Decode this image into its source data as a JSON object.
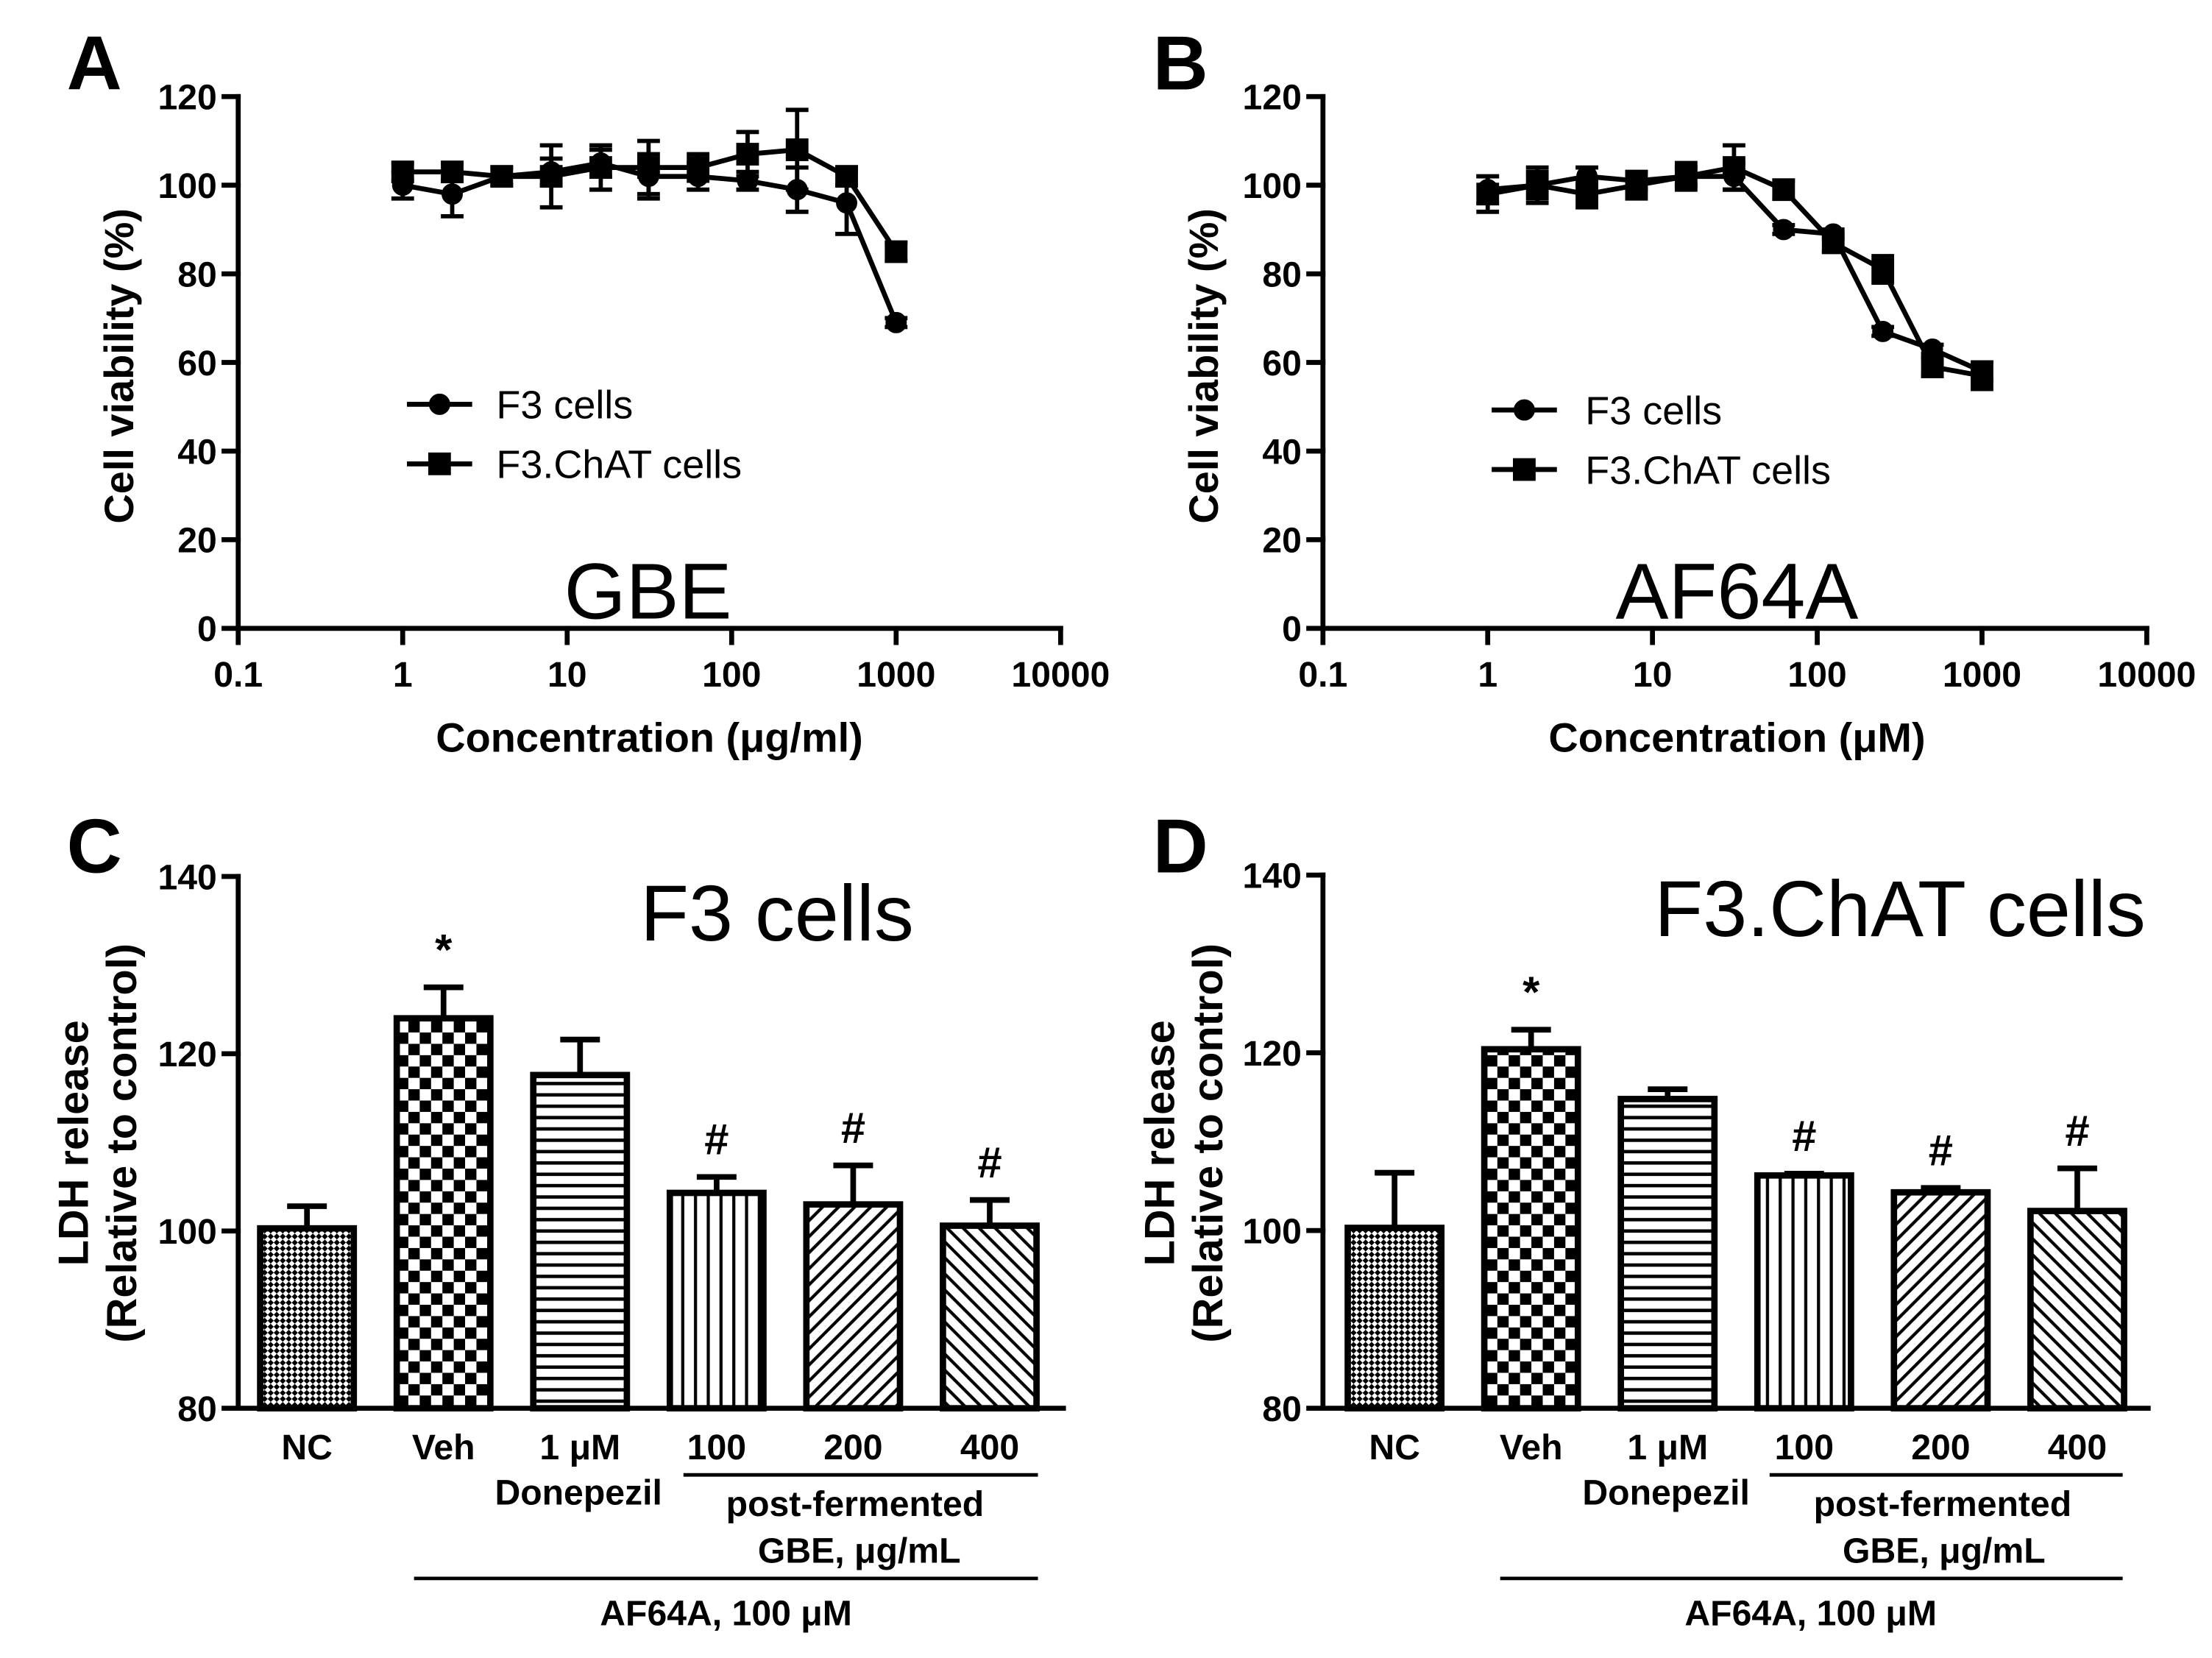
{
  "chart_data": [
    {
      "label": "A",
      "type": "line",
      "title": "GBE",
      "xlabel": "Concentration (μg/ml)",
      "ylabel": "Cell viability (%)",
      "xlog": true,
      "xlim": [
        0.1,
        10000
      ],
      "ylim": [
        0,
        120
      ],
      "xticks": [
        0.1,
        1,
        10,
        100,
        1000,
        10000
      ],
      "yticks": [
        0,
        20,
        40,
        60,
        80,
        100,
        120
      ],
      "grid": false,
      "legend": "center-left",
      "series": [
        {
          "name": "F3 cells",
          "marker": "circle",
          "x": [
            1,
            2,
            4,
            8,
            16,
            31.25,
            62.5,
            125,
            250,
            500,
            1000
          ],
          "y": [
            100,
            98,
            102,
            103,
            105,
            102,
            102,
            101,
            99,
            96,
            69
          ],
          "err": [
            3,
            5,
            2,
            3,
            3,
            5,
            3,
            2,
            5,
            7,
            1
          ]
        },
        {
          "name": "F3.ChAT cells",
          "marker": "square",
          "x": [
            1,
            2,
            4,
            8,
            16,
            31.25,
            62.5,
            125,
            250,
            500,
            1000
          ],
          "y": [
            103,
            103,
            102,
            102,
            104,
            104,
            104,
            107,
            108,
            102,
            85
          ],
          "err": [
            2,
            2,
            2,
            7,
            5,
            6,
            3,
            5,
            9,
            2,
            2
          ]
        }
      ]
    },
    {
      "label": "B",
      "type": "line",
      "title": "AF64A",
      "xlabel": "Concentration (μM)",
      "ylabel": "Cell viability (%)",
      "xlog": true,
      "xlim": [
        0.1,
        10000
      ],
      "ylim": [
        0,
        120
      ],
      "xticks": [
        0.1,
        1,
        10,
        100,
        1000,
        10000
      ],
      "yticks": [
        0,
        20,
        40,
        60,
        80,
        100,
        120
      ],
      "grid": false,
      "legend": "center-left",
      "series": [
        {
          "name": "F3 cells",
          "marker": "circle",
          "x": [
            1,
            2,
            4,
            8,
            16,
            31.25,
            62.5,
            125,
            250,
            500,
            1000
          ],
          "y": [
            99,
            100,
            102,
            101,
            102,
            102,
            90,
            89,
            67,
            63,
            58
          ],
          "err": [
            3,
            3,
            2,
            2,
            2,
            3,
            1,
            1,
            1,
            1,
            2
          ]
        },
        {
          "name": "F3.ChAT cells",
          "marker": "square",
          "x": [
            1,
            2,
            4,
            8,
            16,
            31.25,
            62.5,
            125,
            250,
            500,
            1000
          ],
          "y": [
            98,
            100,
            98,
            100,
            102,
            104,
            99,
            87,
            81,
            59,
            57
          ],
          "err": [
            4,
            4,
            3,
            3,
            3,
            5,
            2,
            2,
            3,
            2,
            3
          ]
        }
      ]
    },
    {
      "label": "C",
      "type": "bar",
      "title": "F3 cells",
      "ylabel": [
        "LDH release",
        "(Relative to control)"
      ],
      "ylim": [
        80,
        140
      ],
      "yticks": [
        80,
        100,
        120,
        140
      ],
      "grid": false,
      "categories": [
        "NC",
        "Veh",
        "1 μM",
        "100",
        "200",
        "400"
      ],
      "values": [
        100.3,
        124.0,
        117.6,
        104.3,
        103.0,
        100.6
      ],
      "errors": [
        2.5,
        3.5,
        4.0,
        1.8,
        4.4,
        2.9
      ],
      "annotations": [
        "",
        "*",
        "",
        "#",
        "#",
        "#"
      ],
      "group_labels": {
        "donepezil": "Donepezil",
        "fermented": [
          "post-fermented",
          "GBE, μg/mL"
        ],
        "treatment": "AF64A, 100 μM"
      }
    },
    {
      "label": "D",
      "type": "bar",
      "title": "F3.ChAT cells",
      "ylabel": [
        "LDH release",
        "(Relative to control)"
      ],
      "ylim": [
        80,
        140
      ],
      "yticks": [
        80,
        100,
        120,
        140
      ],
      "grid": false,
      "categories": [
        "NC",
        "Veh",
        "1 μM",
        "100",
        "200",
        "400"
      ],
      "values": [
        100.3,
        120.4,
        114.8,
        106.2,
        104.3,
        102.2
      ],
      "errors": [
        6.2,
        2.2,
        1.1,
        0.2,
        0.5,
        4.8
      ],
      "annotations": [
        "",
        "*",
        "",
        "#",
        "#",
        "#"
      ],
      "group_labels": {
        "donepezil": "Donepezil",
        "fermented": [
          "post-fermented",
          "GBE, μg/mL"
        ],
        "treatment": "AF64A, 100 μM"
      }
    }
  ]
}
